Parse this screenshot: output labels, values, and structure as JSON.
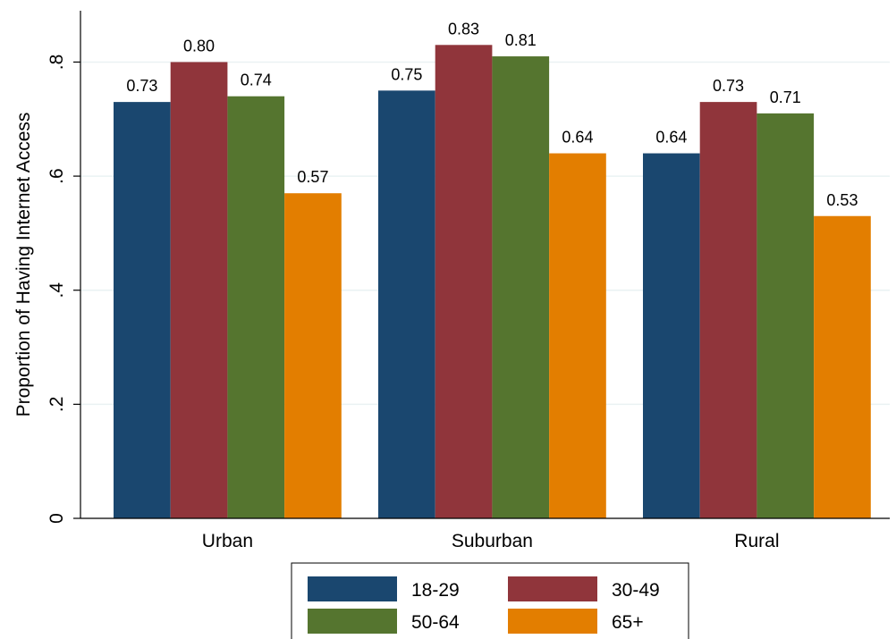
{
  "chart_data": {
    "type": "bar",
    "title": "",
    "xlabel": "",
    "ylabel": "Proportion of Having Internet Access",
    "categories": [
      "Urban",
      "Suburban",
      "Rural"
    ],
    "series": [
      {
        "name": "18-29",
        "color": "#1a476f",
        "values": [
          0.73,
          0.75,
          0.64
        ]
      },
      {
        "name": "30-49",
        "color": "#90353b",
        "values": [
          0.8,
          0.83,
          0.73
        ]
      },
      {
        "name": "50-64",
        "color": "#55752f",
        "values": [
          0.74,
          0.81,
          0.71
        ]
      },
      {
        "name": "65+",
        "color": "#e37e00",
        "values": [
          0.57,
          0.64,
          0.53
        ]
      }
    ],
    "data_labels": [
      [
        "0.73",
        "0.75",
        "0.64"
      ],
      [
        "0.80",
        "0.83",
        "0.73"
      ],
      [
        "0.74",
        "0.81",
        "0.71"
      ],
      [
        "0.57",
        "0.64",
        "0.53"
      ]
    ],
    "ylim": [
      0,
      0.89
    ],
    "yticks": [
      0,
      0.2,
      0.4,
      0.6,
      0.8
    ],
    "ytick_labels": [
      "0",
      ".2",
      ".4",
      ".6",
      ".8"
    ],
    "grid": true,
    "gridline_color": "#eaf2f3",
    "legend_position": "bottom"
  }
}
